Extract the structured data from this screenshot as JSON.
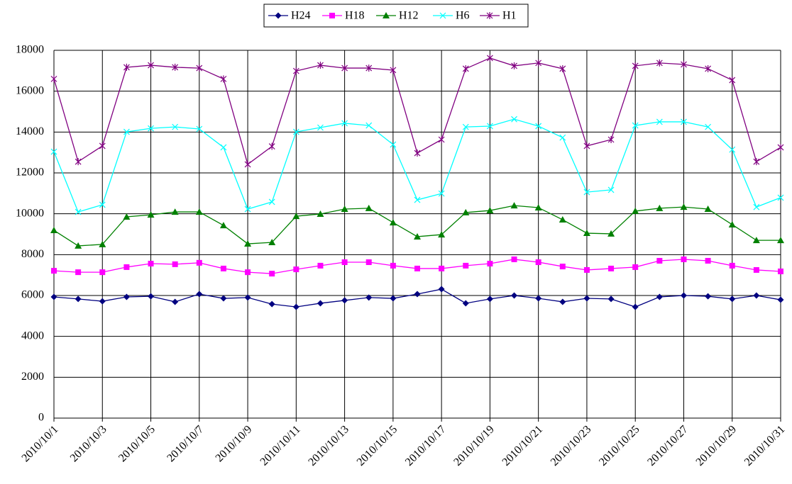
{
  "chart_data": {
    "type": "line",
    "categories": [
      "2010/10/1",
      null,
      "2010/10/3",
      null,
      "2010/10/5",
      null,
      "2010/10/7",
      null,
      "2010/10/9",
      null,
      "2010/10/11",
      null,
      "2010/10/13",
      null,
      "2010/10/15",
      null,
      "2010/10/17",
      null,
      "2010/10/19",
      null,
      "2010/10/21",
      null,
      "2010/10/23",
      null,
      "2010/10/25",
      null,
      "2010/10/27",
      null,
      "2010/10/29",
      null,
      "2010/10/31"
    ],
    "series": [
      {
        "name": "H24",
        "color": "#000080",
        "marker": "diamond",
        "values": [
          5930,
          5830,
          5720,
          5930,
          5960,
          5690,
          6070,
          5860,
          5900,
          5580,
          5440,
          5620,
          5760,
          5900,
          5860,
          6070,
          6310,
          5620,
          5830,
          6000,
          5860,
          5690,
          5860,
          5830,
          5440,
          5930,
          6000,
          5960,
          5830,
          6000,
          5790
        ]
      },
      {
        "name": "H18",
        "color": "#ff00ff",
        "marker": "square",
        "values": [
          7210,
          7140,
          7140,
          7390,
          7560,
          7530,
          7600,
          7320,
          7140,
          7070,
          7280,
          7460,
          7630,
          7630,
          7460,
          7320,
          7320,
          7460,
          7560,
          7770,
          7630,
          7420,
          7250,
          7320,
          7390,
          7700,
          7770,
          7700,
          7460,
          7250,
          7180
        ]
      },
      {
        "name": "H12",
        "color": "#008000",
        "marker": "triangle",
        "values": [
          9190,
          8430,
          8500,
          9850,
          9950,
          10090,
          10090,
          9430,
          8530,
          8600,
          9880,
          9990,
          10230,
          10270,
          9570,
          8880,
          8980,
          10060,
          10160,
          10400,
          10300,
          9710,
          9050,
          9020,
          10130,
          10270,
          10330,
          10230,
          9470,
          8700,
          8700
        ]
      },
      {
        "name": "H6",
        "color": "#00ffff",
        "marker": "x",
        "values": [
          13040,
          10090,
          10440,
          14010,
          14180,
          14250,
          14150,
          13250,
          10230,
          10580,
          14010,
          14220,
          14430,
          14320,
          13390,
          10680,
          10990,
          14250,
          14290,
          14630,
          14290,
          13730,
          11060,
          11170,
          14320,
          14500,
          14500,
          14250,
          13140,
          10330,
          10790
        ]
      },
      {
        "name": "H1",
        "color": "#800080",
        "marker": "star",
        "values": [
          16600,
          12550,
          13320,
          17170,
          17270,
          17170,
          17130,
          16600,
          12420,
          13300,
          16990,
          17270,
          17130,
          17130,
          17030,
          12970,
          13630,
          17100,
          17620,
          17240,
          17380,
          17100,
          13320,
          13630,
          17240,
          17380,
          17310,
          17100,
          16540,
          12550,
          13250
        ]
      }
    ],
    "ylim": [
      0,
      18000
    ],
    "yticks": [
      0,
      2000,
      4000,
      6000,
      8000,
      10000,
      12000,
      14000,
      16000,
      18000
    ],
    "grid": true,
    "legend": "top"
  }
}
